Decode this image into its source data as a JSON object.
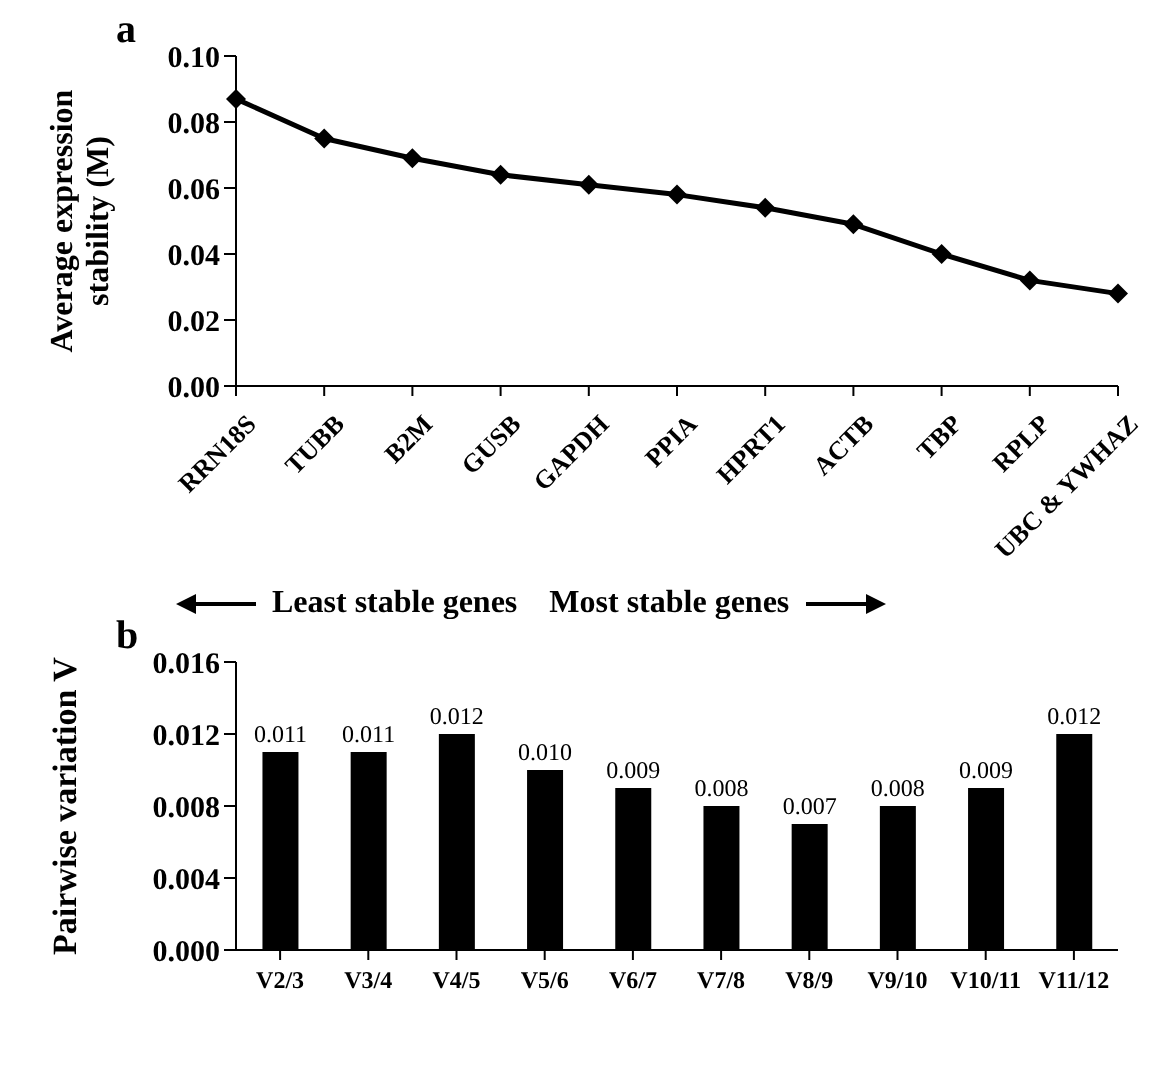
{
  "chart_data": [
    {
      "type": "line",
      "title": "a",
      "ylabel": "Average expression stability (M)",
      "categories": [
        "RRN18S",
        "TUBB",
        "B2M",
        "GUSB",
        "GAPDH",
        "PPIA",
        "HPRT1",
        "ACTB",
        "TBP",
        "RPLP",
        "UBC & YWHAZ"
      ],
      "series": [
        {
          "color": "#000000",
          "values": [
            0.087,
            0.075,
            0.069,
            0.064,
            0.061,
            0.058,
            0.054,
            0.049,
            0.04,
            0.032,
            0.028
          ]
        }
      ],
      "ylim": [
        0,
        0.1
      ],
      "yticks": [
        {
          "value": 0,
          "label": "0.00"
        },
        {
          "value": 0.02,
          "label": "0.02"
        },
        {
          "value": 0.04,
          "label": "0.04"
        },
        {
          "value": 0.06,
          "label": "0.06"
        },
        {
          "value": 0.08,
          "label": "0.08"
        },
        {
          "value": 0.1,
          "label": "0.10"
        }
      ],
      "marker": "diamond",
      "grid": false,
      "legend": false,
      "annotations": [
        "Least stable genes",
        "Most stable genes"
      ]
    },
    {
      "type": "bar",
      "title": "b",
      "ylabel": "Pairwise variation V",
      "categories": [
        "V2/3",
        "V3/4",
        "V4/5",
        "V5/6",
        "V6/7",
        "V7/8",
        "V8/9",
        "V9/10",
        "V10/11",
        "V11/12"
      ],
      "series": [
        {
          "color": "#000000",
          "values": [
            0.011,
            0.011,
            0.012,
            0.01,
            0.009,
            0.008,
            0.007,
            0.008,
            0.009,
            0.012
          ],
          "value_labels": [
            "0.011",
            "0.011",
            "0.012",
            "0.010",
            "0.009",
            "0.008",
            "0.007",
            "0.008",
            "0.009",
            "0.012"
          ]
        }
      ],
      "ylim": [
        0,
        0.016
      ],
      "yticks": [
        {
          "value": 0,
          "label": "0.000"
        },
        {
          "value": 0.004,
          "label": "0.004"
        },
        {
          "value": 0.008,
          "label": "0.008"
        },
        {
          "value": 0.012,
          "label": "0.012"
        },
        {
          "value": 0.016,
          "label": "0.016"
        }
      ],
      "grid": false,
      "legend": false
    }
  ]
}
